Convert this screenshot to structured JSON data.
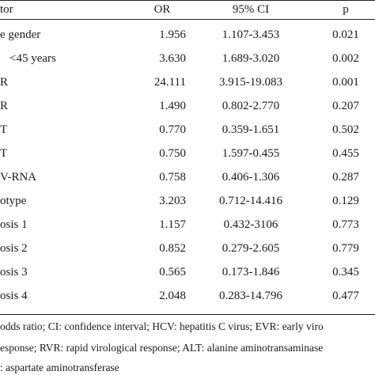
{
  "table": {
    "headers": [
      "tor",
      "OR",
      "95% CI",
      "p"
    ],
    "rows": [
      {
        "factor": "e gender",
        "or": "1.956",
        "ci": "1.107-3.453",
        "p": "0.021"
      },
      {
        "factor": "<45 years",
        "or": "3.630",
        "ci": "1.689-3.020",
        "p": "0.002"
      },
      {
        "factor": "R",
        "or": "24.111",
        "ci": "3.915-19.083",
        "p": "0.001"
      },
      {
        "factor": "R",
        "or": "1.490",
        "ci": "0.802-2.770",
        "p": "0.207"
      },
      {
        "factor": "T",
        "or": "0.770",
        "ci": "0.359-1.651",
        "p": "0.502"
      },
      {
        "factor": "T",
        "or": "0.750",
        "ci": "1.597-0.455",
        "p": "0.455"
      },
      {
        "factor": "V-RNA",
        "or": "0.758",
        "ci": "0.406-1.306",
        "p": "0.287"
      },
      {
        "factor": "otype",
        "or": "3.203",
        "ci": "0.712-14.416",
        "p": "0.129"
      },
      {
        "factor": "osis 1",
        "or": "1.157",
        "ci": "0.432-3106",
        "p": "0.773"
      },
      {
        "factor": "osis 2",
        "or": "0.852",
        "ci": "0.279-2.605",
        "p": "0.779"
      },
      {
        "factor": "osis 3",
        "or": "0.565",
        "ci": "0.173-1.846",
        "p": "0.345"
      },
      {
        "factor": "osis 4",
        "or": "2.048",
        "ci": "0.283-14.796",
        "p": "0.477"
      }
    ]
  },
  "footnotes": [
    "odds ratio; CI: confidence interval; HCV: hepatitis C virus; EVR: early viro",
    "esponse; RVR: rapid virological response; ALT: alanine aminotransaminase",
    ": aspartate aminotransferase"
  ]
}
